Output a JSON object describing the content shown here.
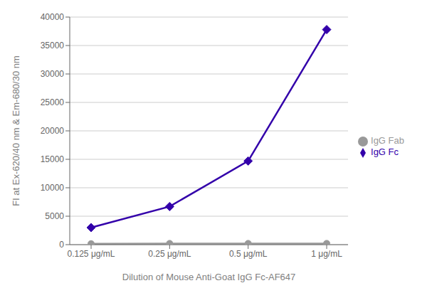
{
  "chart_data": {
    "type": "line",
    "categories": [
      "0.125 μg/mL",
      "0.25 μg/mL",
      "0.5 μg/mL",
      "1 μg/mL"
    ],
    "series": [
      {
        "name": "IgG Fc",
        "color": "#3300AA",
        "marker": "diamond",
        "values": [
          3000,
          6700,
          14700,
          37800
        ]
      },
      {
        "name": "IgG Fab",
        "color": "#999999",
        "marker": "circle",
        "values": [
          150,
          200,
          200,
          200
        ]
      }
    ],
    "x_label": "Dilution of Mouse Anti-Goat IgG Fc-AF647",
    "y_label": "FI at Ex-620/40 nm & Em-680/30 nm",
    "ylim": [
      0,
      40000
    ],
    "yticks": [
      0,
      5000,
      10000,
      15000,
      20000,
      25000,
      30000,
      35000,
      40000
    ],
    "grid": true,
    "legend": "right"
  }
}
